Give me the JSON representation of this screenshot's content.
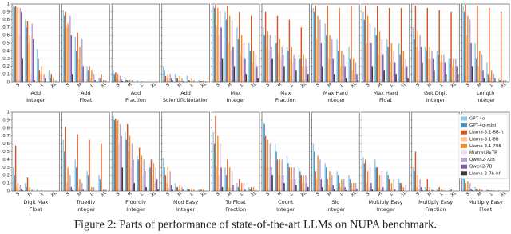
{
  "chart_data": {
    "type": "bar",
    "caption": "Figure 2: Parts of performance of state-of-the-art LLMs on NUPA benchmark.",
    "categories": [
      "S",
      "M",
      "L",
      "XL"
    ],
    "ylim": [
      0,
      1
    ],
    "yticks": [
      0,
      0.1,
      0.2,
      0.3,
      0.4,
      0.5,
      0.6,
      0.7,
      0.8,
      0.9,
      1
    ],
    "grid": true,
    "series": [
      {
        "name": "GPT-4o",
        "color": "#8ecae6"
      },
      {
        "name": "GPT-4o-mini",
        "color": "#4a90b8"
      },
      {
        "name": "Llama-3.1-8B-ft",
        "color": "#d9531e"
      },
      {
        "name": "Llama-3.1-8B",
        "color": "#fdc98a"
      },
      {
        "name": "Llama-3.1-70B",
        "color": "#f08c2a"
      },
      {
        "name": "Mixtral-8x7B",
        "color": "#e6dcef"
      },
      {
        "name": "Qwen2-72B",
        "color": "#b9a3cf"
      },
      {
        "name": "Qwen2-7B",
        "color": "#7d5ba6"
      },
      {
        "name": "Llama-2-7b-hf",
        "color": "#3a3a3a"
      }
    ],
    "panels": [
      {
        "task": "Add",
        "domain": "Integer",
        "values": [
          [
            0.98,
            0.8,
            0.42,
            0.15
          ],
          [
            0.96,
            0.7,
            0.3,
            0.05
          ],
          [
            0.97,
            0.78,
            0.15,
            0.1
          ],
          [
            0.95,
            0.5,
            0.1,
            0
          ],
          [
            0.96,
            0.6,
            0.2,
            0.05
          ],
          [
            0.6,
            0.1,
            0,
            0
          ],
          [
            0.95,
            0.75,
            0.1,
            0.02
          ],
          [
            0.9,
            0.55,
            0.05,
            0
          ],
          [
            0.3,
            0.02,
            0,
            0
          ]
        ]
      },
      {
        "task": "Add",
        "domain": "Float",
        "values": [
          [
            0.92,
            0.58,
            0.2,
            0.05
          ],
          [
            0.85,
            0.4,
            0.15,
            0.05
          ],
          [
            0.9,
            0.63,
            0.2,
            0.1
          ],
          [
            0.7,
            0.3,
            0.05,
            0
          ],
          [
            0.75,
            0.45,
            0.15,
            0.03
          ],
          [
            0.4,
            0.1,
            0,
            0
          ],
          [
            0.85,
            0.55,
            0.1,
            0.02
          ],
          [
            0.6,
            0.2,
            0.03,
            0
          ],
          [
            0.1,
            0,
            0,
            0
          ]
        ]
      },
      {
        "task": "Add",
        "domain": "Fraction",
        "values": [
          [
            0.15,
            0.05,
            0.02,
            0
          ],
          [
            0.1,
            0.03,
            0,
            0
          ],
          [
            0.12,
            0.02,
            0,
            0
          ],
          [
            0.05,
            0,
            0,
            0
          ],
          [
            0.1,
            0.03,
            0.01,
            0
          ],
          [
            0.02,
            0,
            0,
            0
          ],
          [
            0.08,
            0.02,
            0,
            0
          ],
          [
            0.04,
            0,
            0,
            0
          ],
          [
            0.01,
            0,
            0,
            0
          ]
        ]
      },
      {
        "task": "Add",
        "domain": "ScientificNotation",
        "values": [
          [
            0.2,
            0.1,
            0.08,
            0.03
          ],
          [
            0.15,
            0.05,
            0.03,
            0.01
          ],
          [
            0.08,
            0.05,
            0.02,
            0.01
          ],
          [
            0.05,
            0.02,
            0,
            0
          ],
          [
            0.1,
            0.08,
            0.05,
            0.02
          ],
          [
            0.05,
            0.02,
            0,
            0
          ],
          [
            0.1,
            0.05,
            0.03,
            0.01
          ],
          [
            0.05,
            0.01,
            0,
            0
          ],
          [
            0.02,
            0,
            0,
            0
          ]
        ]
      },
      {
        "task": "Max",
        "domain": "Integer",
        "values": [
          [
            0.98,
            0.9,
            0.7,
            0.5
          ],
          [
            0.95,
            0.8,
            0.55,
            0.4
          ],
          [
            0.99,
            0.97,
            0.9,
            0.85
          ],
          [
            0.7,
            0.5,
            0.35,
            0.25
          ],
          [
            0.95,
            0.85,
            0.6,
            0.4
          ],
          [
            0.6,
            0.4,
            0.3,
            0.2
          ],
          [
            0.9,
            0.8,
            0.5,
            0.35
          ],
          [
            0.7,
            0.45,
            0.3,
            0.2
          ],
          [
            0.3,
            0.2,
            0.1,
            0.05
          ]
        ]
      },
      {
        "task": "Max",
        "domain": "Fraction",
        "values": [
          [
            0.7,
            0.6,
            0.45,
            0.35
          ],
          [
            0.6,
            0.5,
            0.4,
            0.3
          ],
          [
            0.9,
            0.85,
            0.8,
            0.7
          ],
          [
            0.45,
            0.35,
            0.3,
            0.2
          ],
          [
            0.65,
            0.55,
            0.45,
            0.35
          ],
          [
            0.4,
            0.3,
            0.25,
            0.2
          ],
          [
            0.6,
            0.45,
            0.35,
            0.3
          ],
          [
            0.45,
            0.35,
            0.3,
            0.2
          ],
          [
            0.3,
            0.2,
            0.15,
            0.1
          ]
        ]
      },
      {
        "task": "Max Hard",
        "domain": "Integer",
        "values": [
          [
            0.95,
            0.75,
            0.55,
            0.45
          ],
          [
            0.9,
            0.6,
            0.4,
            0.3
          ],
          [
            0.98,
            0.98,
            0.95,
            0.97
          ],
          [
            0.55,
            0.3,
            0.2,
            0.15
          ],
          [
            0.85,
            0.6,
            0.4,
            0.3
          ],
          [
            0.5,
            0.3,
            0.2,
            0.1
          ],
          [
            0.8,
            0.55,
            0.35,
            0.25
          ],
          [
            0.5,
            0.3,
            0.2,
            0.1
          ],
          [
            0.2,
            0.1,
            0.05,
            0.03
          ]
        ]
      },
      {
        "task": "Max Hard",
        "domain": "Float",
        "values": [
          [
            0.9,
            0.7,
            0.55,
            0.5
          ],
          [
            0.8,
            0.6,
            0.45,
            0.35
          ],
          [
            0.98,
            0.97,
            0.95,
            0.95
          ],
          [
            0.5,
            0.35,
            0.25,
            0.2
          ],
          [
            0.85,
            0.65,
            0.5,
            0.4
          ],
          [
            0.5,
            0.35,
            0.25,
            0.2
          ],
          [
            0.75,
            0.55,
            0.4,
            0.3
          ],
          [
            0.5,
            0.35,
            0.25,
            0.2
          ],
          [
            0.2,
            0.15,
            0.1,
            0.05
          ]
        ]
      },
      {
        "task": "Get Digit",
        "domain": "Integer",
        "values": [
          [
            0.7,
            0.45,
            0.4,
            0.3
          ],
          [
            0.55,
            0.4,
            0.35,
            0.3
          ],
          [
            0.98,
            0.95,
            0.92,
            0.9
          ],
          [
            0.45,
            0.3,
            0.25,
            0.2
          ],
          [
            0.65,
            0.45,
            0.35,
            0.3
          ],
          [
            0.4,
            0.3,
            0.25,
            0.2
          ],
          [
            0.6,
            0.4,
            0.35,
            0.3
          ],
          [
            0.45,
            0.3,
            0.25,
            0.2
          ],
          [
            0.25,
            0.15,
            0.1,
            0.1
          ]
        ]
      },
      {
        "task": "Length",
        "domain": "Integer",
        "values": [
          [
            0.97,
            0.5,
            0.25,
            0.05
          ],
          [
            0.9,
            0.3,
            0.1,
            0.02
          ],
          [
            0.99,
            0.98,
            0.95,
            0.9
          ],
          [
            0.6,
            0.2,
            0.05,
            0
          ],
          [
            0.85,
            0.4,
            0.15,
            0.02
          ],
          [
            0.5,
            0.15,
            0.05,
            0
          ],
          [
            0.8,
            0.35,
            0.1,
            0.02
          ],
          [
            0.5,
            0.15,
            0.05,
            0
          ],
          [
            0.2,
            0.05,
            0,
            0
          ]
        ]
      },
      {
        "task": "Digit Max",
        "domain": "Float",
        "values": [
          [
            0.3,
            0.1,
            0.02,
            0
          ],
          [
            0.2,
            0.05,
            0,
            0
          ],
          [
            0.58,
            0.17,
            0,
            0
          ],
          [
            0.05,
            0.01,
            0,
            0
          ],
          [
            0.1,
            0.05,
            0.01,
            0
          ],
          [
            0.02,
            0,
            0,
            0
          ],
          [
            0.08,
            0.02,
            0,
            0
          ],
          [
            0.03,
            0,
            0,
            0
          ],
          [
            0.01,
            0,
            0,
            0
          ]
        ]
      },
      {
        "task": "Truediv",
        "domain": "Integer",
        "values": [
          [
            0.65,
            0.4,
            0.25,
            0.2
          ],
          [
            0.5,
            0.3,
            0.2,
            0.15
          ],
          [
            0.82,
            0.72,
            0.65,
            0.6
          ],
          [
            0.1,
            0.05,
            0.02,
            0.01
          ],
          [
            0.3,
            0.15,
            0.05,
            0.02
          ],
          [
            0.05,
            0.02,
            0,
            0
          ],
          [
            0.2,
            0.1,
            0.05,
            0.02
          ],
          [
            0.05,
            0.02,
            0,
            0
          ],
          [
            0.01,
            0,
            0,
            0
          ]
        ]
      },
      {
        "task": "Floordiv",
        "domain": "Integer",
        "values": [
          [
            0.95,
            0.75,
            0.45,
            0.35
          ],
          [
            0.9,
            0.65,
            0.4,
            0.3
          ],
          [
            0.92,
            0.85,
            0.55,
            0.4
          ],
          [
            0.85,
            0.5,
            0.3,
            0.2
          ],
          [
            0.9,
            0.7,
            0.45,
            0.35
          ],
          [
            0.6,
            0.3,
            0.2,
            0.1
          ],
          [
            0.85,
            0.6,
            0.4,
            0.3
          ],
          [
            0.7,
            0.4,
            0.25,
            0.15
          ],
          [
            0.3,
            0.1,
            0.05,
            0.02
          ]
        ]
      },
      {
        "task": "Mod Easy",
        "domain": "Integer",
        "values": [
          [
            0.42,
            0.1,
            0.03,
            0.02
          ],
          [
            0.3,
            0.05,
            0.02,
            0
          ],
          [
            0.2,
            0.05,
            0.02,
            0.02
          ],
          [
            0.1,
            0.02,
            0,
            0
          ],
          [
            0.3,
            0.08,
            0.03,
            0.02
          ],
          [
            0.05,
            0.01,
            0,
            0
          ],
          [
            0.25,
            0.05,
            0.02,
            0
          ],
          [
            0.08,
            0.02,
            0,
            0
          ],
          [
            0.02,
            0,
            0,
            0
          ]
        ]
      },
      {
        "task": "To Float",
        "domain": "Fraction",
        "values": [
          [
            0.75,
            0.3,
            0.1,
            0.05
          ],
          [
            0.6,
            0.2,
            0.05,
            0.02
          ],
          [
            0.95,
            0.4,
            0.15,
            0.05
          ],
          [
            0.3,
            0.05,
            0.02,
            0
          ],
          [
            0.7,
            0.3,
            0.1,
            0.05
          ],
          [
            0.2,
            0.05,
            0,
            0
          ],
          [
            0.6,
            0.25,
            0.1,
            0.03
          ],
          [
            0.3,
            0.08,
            0.02,
            0
          ],
          [
            0.05,
            0,
            0,
            0
          ]
        ]
      },
      {
        "task": "Count",
        "domain": "Integer",
        "values": [
          [
            0.88,
            0.6,
            0.45,
            0.3
          ],
          [
            0.85,
            0.5,
            0.35,
            0.25
          ],
          [
            0.7,
            0.4,
            0.3,
            0.2
          ],
          [
            0.3,
            0.2,
            0.15,
            0.1
          ],
          [
            0.65,
            0.4,
            0.3,
            0.2
          ],
          [
            0.3,
            0.2,
            0.15,
            0.1
          ],
          [
            0.6,
            0.4,
            0.3,
            0.2
          ],
          [
            0.3,
            0.2,
            0.15,
            0.1
          ],
          [
            0.2,
            0.1,
            0.08,
            0.05
          ]
        ]
      },
      {
        "task": "Sig",
        "domain": "Integer",
        "values": [
          [
            0.6,
            0.35,
            0.25,
            0.2
          ],
          [
            0.5,
            0.3,
            0.2,
            0.15
          ],
          [
            0.25,
            0.15,
            0.1,
            0.1
          ],
          [
            0.15,
            0.08,
            0.05,
            0.03
          ],
          [
            0.45,
            0.25,
            0.15,
            0.1
          ],
          [
            0.1,
            0.05,
            0.03,
            0.02
          ],
          [
            0.4,
            0.2,
            0.15,
            0.1
          ],
          [
            0.15,
            0.08,
            0.05,
            0.03
          ],
          [
            0.05,
            0.02,
            0.01,
            0
          ]
        ]
      },
      {
        "task": "Multiply Easy",
        "domain": "Integer",
        "values": [
          [
            0.43,
            0.4,
            0.25,
            0.15
          ],
          [
            0.35,
            0.3,
            0.2,
            0.1
          ],
          [
            0.4,
            0.3,
            0.15,
            0.1
          ],
          [
            0.1,
            0.05,
            0.02,
            0.01
          ],
          [
            0.25,
            0.2,
            0.1,
            0.05
          ],
          [
            0.05,
            0.02,
            0,
            0
          ],
          [
            0.3,
            0.25,
            0.15,
            0.08
          ],
          [
            0.1,
            0.05,
            0.02,
            0
          ],
          [
            0.02,
            0,
            0,
            0
          ]
        ]
      },
      {
        "task": "Multiply Easy",
        "domain": "Fraction",
        "values": [
          [
            0.3,
            0.05,
            0.02,
            0.01
          ],
          [
            0.25,
            0.03,
            0.01,
            0
          ],
          [
            0.5,
            0.15,
            0.05,
            0.02
          ],
          [
            0.05,
            0.01,
            0,
            0
          ],
          [
            0.2,
            0.05,
            0.02,
            0
          ],
          [
            0.03,
            0,
            0,
            0
          ],
          [
            0.15,
            0.03,
            0.01,
            0
          ],
          [
            0.05,
            0.01,
            0,
            0
          ],
          [
            0.01,
            0,
            0,
            0
          ]
        ]
      },
      {
        "task": "Multiply Easy",
        "domain": "Float",
        "values": [
          [
            0.2,
            0.05,
            0.02,
            0.01
          ],
          [
            0.15,
            0.03,
            0.01,
            0
          ],
          [
            0.1,
            0.03,
            0.01,
            0
          ],
          [
            0.03,
            0.01,
            0,
            0
          ],
          [
            0.12,
            0.03,
            0.01,
            0
          ],
          [
            0.02,
            0,
            0,
            0
          ],
          [
            0.1,
            0.02,
            0.01,
            0
          ],
          [
            0.03,
            0,
            0,
            0
          ],
          [
            0.01,
            0,
            0,
            0
          ]
        ]
      }
    ]
  }
}
